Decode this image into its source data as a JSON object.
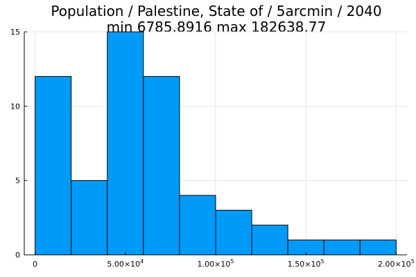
{
  "chart_data": {
    "type": "bar",
    "title": "Population / Palestine, State of / 5arcmin / 2040",
    "subtitle": "min 6785.8916  max 182638.77",
    "xlabel": "",
    "ylabel": "",
    "bin_edges": [
      0,
      20000,
      40000,
      60000,
      80000,
      100000,
      120000,
      140000,
      160000,
      180000,
      200000
    ],
    "values": [
      12,
      5,
      15,
      12,
      4,
      3,
      2,
      1,
      1,
      1
    ],
    "xlim": [
      -6000,
      206000
    ],
    "ylim": [
      0,
      15
    ],
    "x_ticks": [
      {
        "value": 0,
        "label": "0",
        "exponent": ""
      },
      {
        "value": 50000,
        "label": "5.00×10",
        "exponent": "4"
      },
      {
        "value": 100000,
        "label": "1.00×10",
        "exponent": "5"
      },
      {
        "value": 150000,
        "label": "1.50×10",
        "exponent": "5"
      },
      {
        "value": 200000,
        "label": "2.00×10",
        "exponent": "5"
      }
    ],
    "y_ticks": [
      {
        "value": 0,
        "label": "0"
      },
      {
        "value": 5,
        "label": "5"
      },
      {
        "value": 10,
        "label": "10"
      },
      {
        "value": 15,
        "label": "15"
      }
    ],
    "grid": true,
    "legend": false,
    "bar_color": "#009af9",
    "edge_color": "#000000"
  }
}
